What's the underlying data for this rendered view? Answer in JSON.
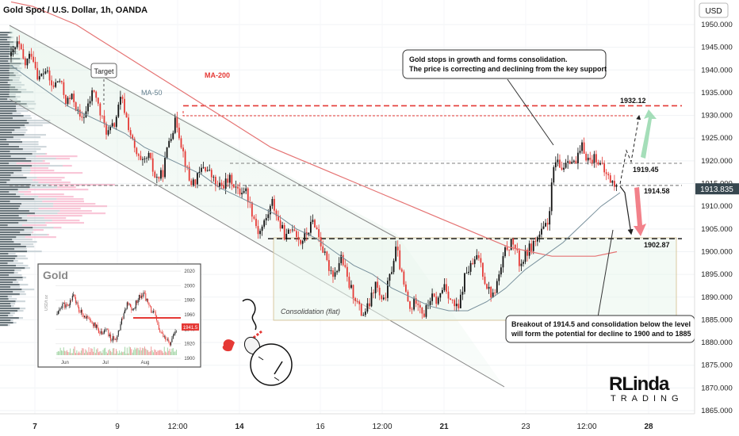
{
  "chart_data": {
    "type": "candlestick",
    "title": "Gold Spot / U.S. Dollar, 1h, OANDA",
    "currency": "USD",
    "last_price": "1913.835",
    "ylim": [
      1863,
      1958
    ],
    "y_ticks": [
      "1865.000",
      "1870.000",
      "1875.000",
      "1880.000",
      "1885.000",
      "1890.000",
      "1895.000",
      "1900.000",
      "1905.000",
      "1910.000",
      "1915.000",
      "1920.000",
      "1925.000",
      "1930.000",
      "1935.000",
      "1940.000",
      "1945.000",
      "1950.000"
    ],
    "x_ticks": [
      "7",
      "9",
      "12:00",
      "14",
      "16",
      "12:00",
      "21",
      "23",
      "12:00",
      "28"
    ],
    "x_ticks_bold": [
      "7",
      "14",
      "21",
      "28"
    ],
    "ohlc_path": [
      1943,
      1946,
      1941,
      1944,
      1938,
      1940,
      1936,
      1938,
      1933,
      1934,
      1929,
      1931,
      1936,
      1930,
      1926,
      1928,
      1934,
      1928,
      1922,
      1919,
      1921,
      1916,
      1917,
      1925,
      1929,
      1922,
      1915,
      1916,
      1919,
      1917,
      1914,
      1915,
      1916,
      1913,
      1914,
      1909,
      1904,
      1907,
      1911,
      1906,
      1903,
      1906,
      1902,
      1904,
      1907,
      1902,
      1897,
      1895,
      1899,
      1893,
      1890,
      1886,
      1888,
      1893,
      1888,
      1894,
      1901,
      1893,
      1887,
      1890,
      1886,
      1890,
      1889,
      1893,
      1889,
      1887,
      1895,
      1897,
      1899,
      1893,
      1890,
      1895,
      1901,
      1902,
      1897,
      1900,
      1902,
      1904,
      1906,
      1920,
      1918,
      1921,
      1919,
      1923,
      1920,
      1921,
      1918,
      1916,
      1914
    ],
    "ma50_label": "MA-50",
    "ma50": [
      1941,
      1938,
      1935,
      1932,
      1930,
      1928,
      1926,
      1923,
      1921,
      1919,
      1917,
      1914,
      1912,
      1910,
      1908,
      1905,
      1903,
      1900,
      1897,
      1895,
      1892,
      1890,
      1888,
      1887,
      1887,
      1889,
      1892,
      1896,
      1899,
      1902,
      1906,
      1910,
      1913
    ],
    "ma200_label": "MA-200",
    "ma200": [
      1955,
      1954,
      1952,
      1950,
      1947,
      1944,
      1941,
      1938,
      1935,
      1932,
      1929,
      1926,
      1923,
      1921,
      1919,
      1917,
      1915,
      1913,
      1911,
      1909,
      1907,
      1905,
      1903,
      1901,
      1900,
      1899,
      1899,
      1899,
      1900
    ],
    "levels": [
      {
        "label": "1932.12",
        "value": 1932.12,
        "color": "#e53935",
        "style": "dash-thick"
      },
      {
        "label": "1919.45",
        "value": 1919.45,
        "color": "#555555",
        "style": "dash"
      },
      {
        "label": "1914.58",
        "value": 1914.58,
        "color": "#555555",
        "style": "dash"
      },
      {
        "label": "1902.87",
        "value": 1902.87,
        "color": "#333333",
        "style": "dash-thick"
      }
    ],
    "annotations": {
      "target": "Target",
      "consolidation": "Consolidation (flat)",
      "note_top_line1": "Gold stops in growth and forms consolidation.",
      "note_top_line2": "The price is correcting and declining from the key support",
      "note_bottom_line1": "Breakout of 1914.5 and consolidation below the level",
      "note_bottom_line2": "will form the potential for decline to 1900 and to 1885"
    },
    "inset": {
      "title": "Gold",
      "y_ticks": [
        "2020",
        "2000",
        "1980",
        "1960",
        "1940",
        "1920",
        "1900"
      ],
      "x_ticks": [
        "Jun",
        "Jul",
        "Aug"
      ],
      "price_tag": "1941.5",
      "y_axis_label": "USD/t.oz"
    },
    "grid": true
  },
  "branding": {
    "logo_top": "RLinda",
    "logo_bottom": "TRADING"
  }
}
